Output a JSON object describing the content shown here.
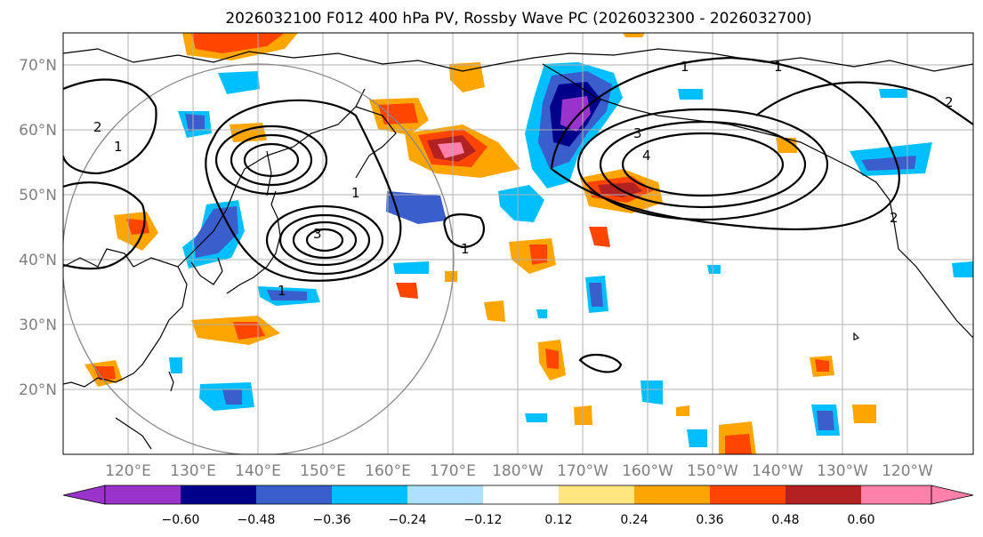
{
  "title": "2026032100 F012 400 hPa PV, Rossby Wave PC (2026032300 - 2026032700)",
  "map": {
    "lat_labels": [
      "70°N",
      "60°N",
      "50°N",
      "40°N",
      "30°N",
      "20°N"
    ],
    "lon_labels": [
      "120°E",
      "130°E",
      "140°E",
      "150°E",
      "160°E",
      "170°E",
      "180°W",
      "170°W",
      "160°W",
      "150°W",
      "140°W",
      "130°W",
      "120°W"
    ],
    "lat_range": [
      10,
      75
    ],
    "lon_range": [
      110,
      250
    ],
    "contour_labels": [
      "1",
      "1",
      "1",
      "1",
      "1",
      "2",
      "2",
      "3",
      "3",
      "4",
      "1",
      "2"
    ]
  },
  "colorbar": {
    "ticks": [
      "−0.60",
      "−0.48",
      "−0.36",
      "−0.24",
      "−0.12",
      "0.12",
      "0.24",
      "0.36",
      "0.48",
      "0.60"
    ],
    "colors": [
      "#9933cc",
      "#00008b",
      "#3a5fcd",
      "#00bfff",
      "#b0e0ff",
      "#ffffff",
      "#ffe680",
      "#ffa500",
      "#ff4500",
      "#b22222",
      "#ff80aa"
    ]
  }
}
